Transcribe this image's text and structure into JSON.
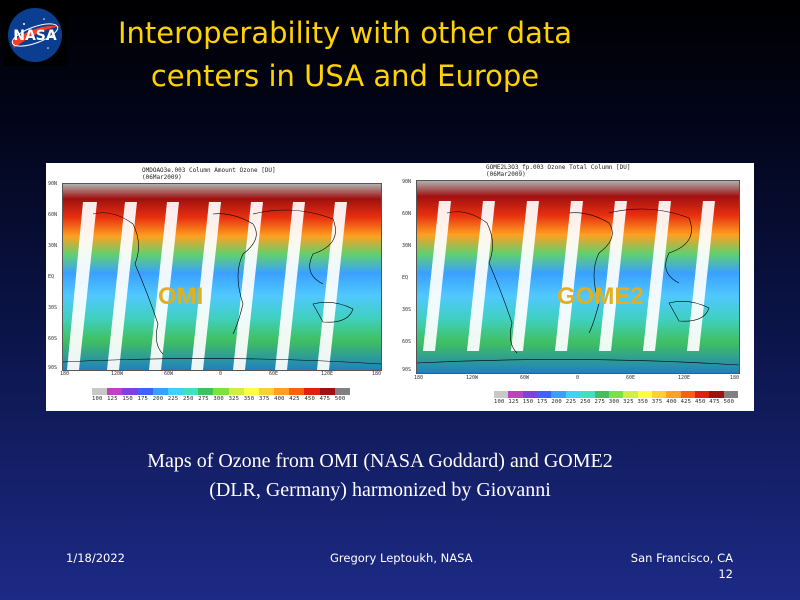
{
  "slide": {
    "title_line1": "Interoperability with other data",
    "title_line2": "centers in USA and Europe",
    "logo_text": "NASA",
    "caption_line1": "Maps of Ozone from OMI (NASA Goddard) and GOME2",
    "caption_line2": "(DLR, Germany) harmonized by Giovanni",
    "footer_date": "1/18/2022",
    "footer_author": "Gregory Leptoukh, NASA",
    "footer_location": "San Francisco, CA",
    "footer_page": "12"
  },
  "maps": [
    {
      "label": "OMI",
      "plot_title_line1": "OMDOAO3e.003 Column Amount Ozone [DU]",
      "plot_title_line2": "(06Mar2009)",
      "lat_ticks": [
        "90N",
        "60N",
        "30N",
        "EQ",
        "30S",
        "60S",
        "90S"
      ],
      "lon_ticks": [
        "180",
        "120W",
        "60W",
        "0",
        "60E",
        "120E",
        "180"
      ],
      "colorbar_ticks": [
        "100",
        "125",
        "150",
        "175",
        "200",
        "225",
        "250",
        "275",
        "300",
        "325",
        "350",
        "375",
        "400",
        "425",
        "450",
        "475",
        "500"
      ]
    },
    {
      "label": "GOME2",
      "plot_title_line1": "GOME2L3O3_fp.003 Ozone Total Column [DU]",
      "plot_title_line2": "(06Mar2009)",
      "lat_ticks": [
        "90N",
        "60N",
        "30N",
        "EQ",
        "30S",
        "60S",
        "90S"
      ],
      "lon_ticks": [
        "180",
        "120W",
        "60W",
        "0",
        "60E",
        "120E",
        "180"
      ],
      "colorbar_ticks": [
        "100",
        "125",
        "150",
        "175",
        "200",
        "225",
        "250",
        "275",
        "300",
        "325",
        "350",
        "375",
        "400",
        "425",
        "450",
        "475",
        "500"
      ]
    }
  ],
  "colors": {
    "title": "#ffd200",
    "map_label": "#e0b020",
    "colorbar": [
      "#c8c8c8",
      "#c040c0",
      "#8040e0",
      "#4060ff",
      "#3aa0ff",
      "#40d0ff",
      "#40e0c0",
      "#40c060",
      "#80e040",
      "#d0f040",
      "#ffff40",
      "#ffd030",
      "#ffa020",
      "#ff6010",
      "#e02010",
      "#a01010",
      "#808080"
    ]
  }
}
